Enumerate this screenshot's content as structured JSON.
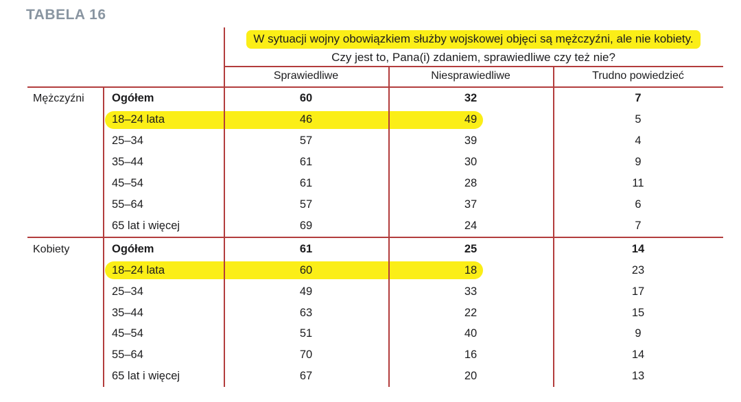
{
  "title": "TABELA 16",
  "question": {
    "line1": "W sytuacji wojny obowiązkiem służby wojskowej objęci są mężczyźni, ale nie kobiety.",
    "line2": "Czy jest to, Pana(i) zdaniem, sprawiedliwe czy też nie?"
  },
  "columns": [
    "Sprawiedliwe",
    "Niesprawiedliwe",
    "Trudno powiedzieć"
  ],
  "groups": [
    {
      "label": "Mężczyźni",
      "rows": [
        {
          "label": "Ogółem",
          "bold": true,
          "highlight": false,
          "values": [
            "60",
            "32",
            "7"
          ]
        },
        {
          "label": "18–24 lata",
          "bold": false,
          "highlight": true,
          "values": [
            "46",
            "49",
            "5"
          ]
        },
        {
          "label": "25–34",
          "bold": false,
          "highlight": false,
          "values": [
            "57",
            "39",
            "4"
          ]
        },
        {
          "label": "35–44",
          "bold": false,
          "highlight": false,
          "values": [
            "61",
            "30",
            "9"
          ]
        },
        {
          "label": "45–54",
          "bold": false,
          "highlight": false,
          "values": [
            "61",
            "28",
            "11"
          ]
        },
        {
          "label": "55–64",
          "bold": false,
          "highlight": false,
          "values": [
            "57",
            "37",
            "6"
          ]
        },
        {
          "label": "65 lat i więcej",
          "bold": false,
          "highlight": false,
          "values": [
            "69",
            "24",
            "7"
          ]
        }
      ]
    },
    {
      "label": "Kobiety",
      "rows": [
        {
          "label": "Ogółem",
          "bold": true,
          "highlight": false,
          "values": [
            "61",
            "25",
            "14"
          ]
        },
        {
          "label": "18–24 lata",
          "bold": false,
          "highlight": true,
          "values": [
            "60",
            "18",
            "23"
          ]
        },
        {
          "label": "25–34",
          "bold": false,
          "highlight": false,
          "values": [
            "49",
            "33",
            "17"
          ]
        },
        {
          "label": "35–44",
          "bold": false,
          "highlight": false,
          "values": [
            "63",
            "22",
            "15"
          ]
        },
        {
          "label": "45–54",
          "bold": false,
          "highlight": false,
          "values": [
            "51",
            "40",
            "9"
          ]
        },
        {
          "label": "55–64",
          "bold": false,
          "highlight": false,
          "values": [
            "70",
            "16",
            "14"
          ]
        },
        {
          "label": "65 lat i więcej",
          "bold": false,
          "highlight": false,
          "values": [
            "67",
            "20",
            "13"
          ]
        }
      ]
    }
  ],
  "colors": {
    "line_red": "#b23c3c",
    "highlight_yellow": "#fbee17",
    "title_gray": "#8995a1",
    "text_black": "#1c1c1e"
  }
}
